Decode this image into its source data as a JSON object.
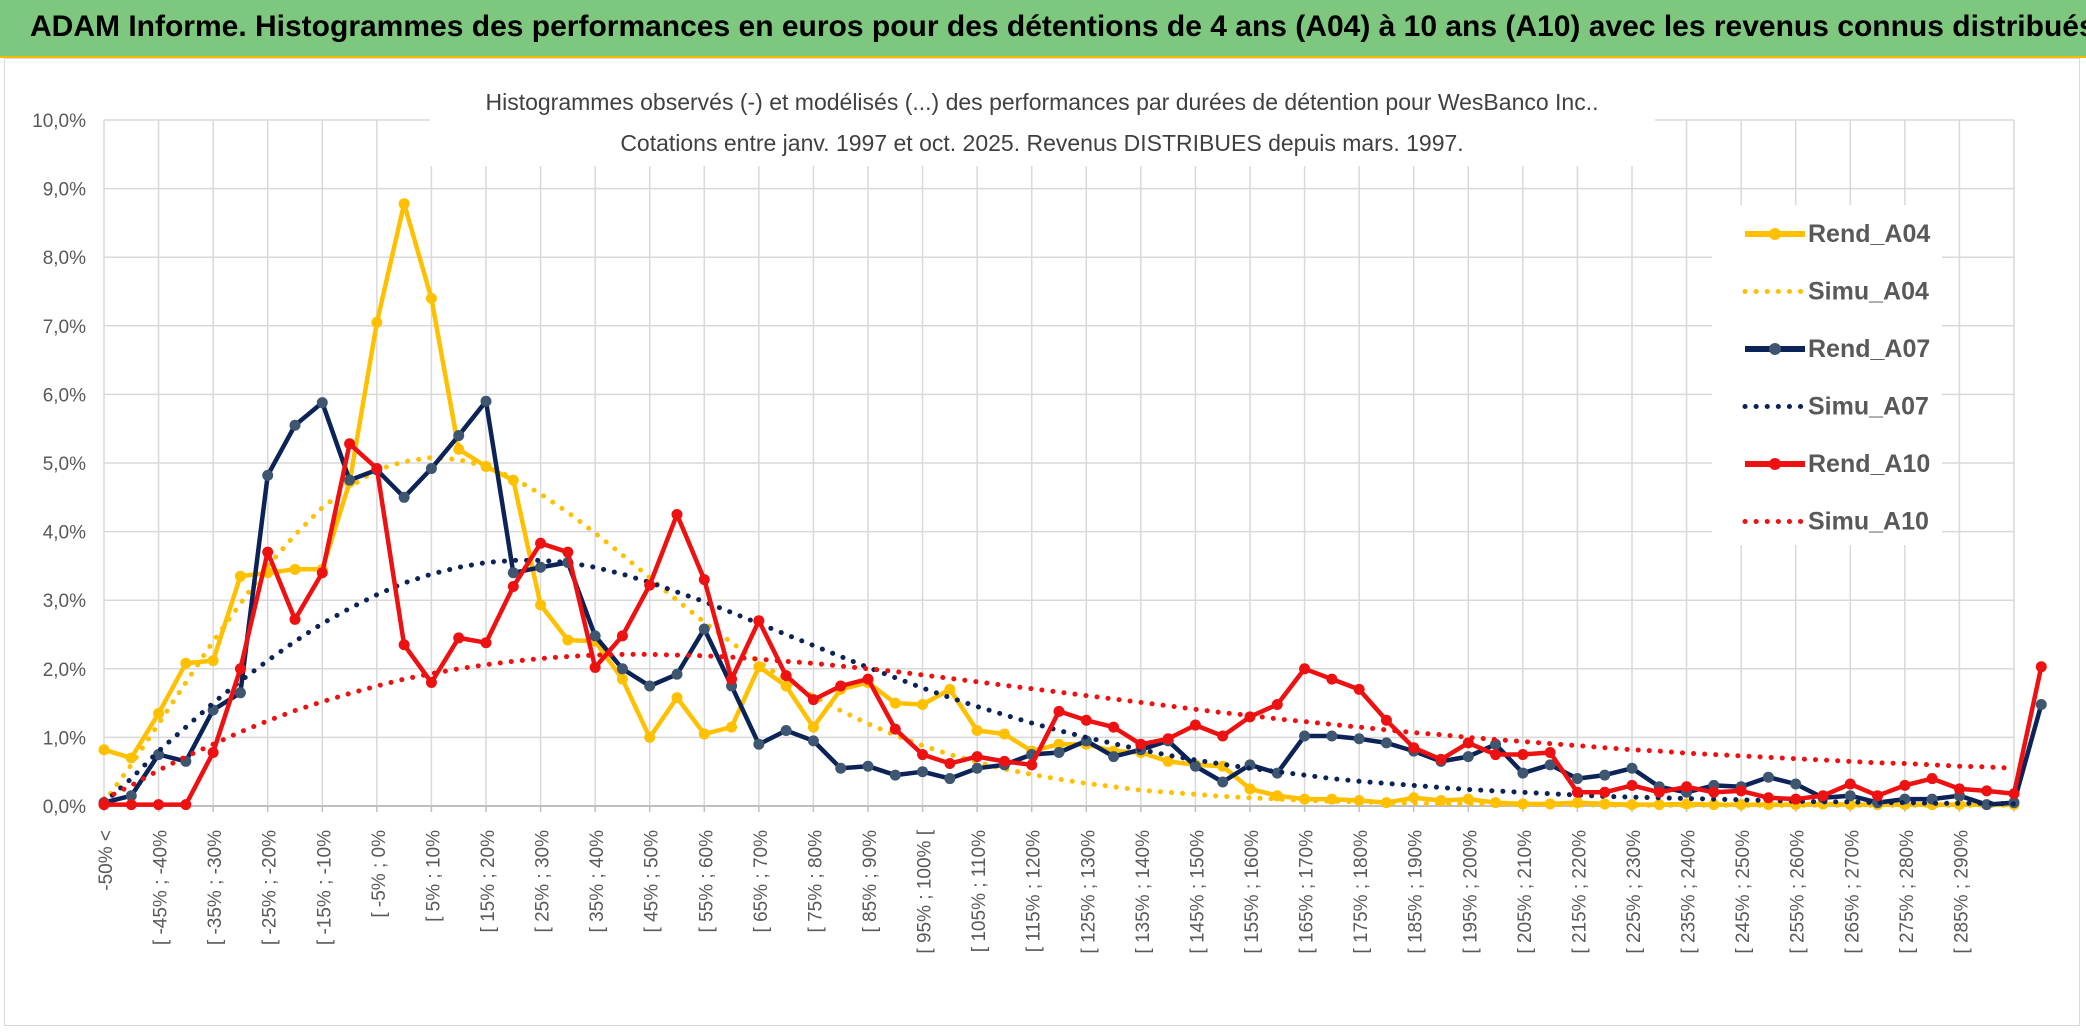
{
  "header": {
    "title": "ADAM Informe. Histogrammes des performances en euros pour des détentions de 4 ans (A04) à 10 ans (A10) avec les revenus connus distribués"
  },
  "chart_data": {
    "type": "line",
    "title": "Histogrammes observés (-) et modélisés (...) des performances par durées de détention pour WesBanco Inc..",
    "subtitle": "Cotations entre janv. 1997 et oct. 2025. Revenus DISTRIBUES depuis mars. 1997.",
    "y_tick_labels": [
      "0,0%",
      "1,0%",
      "2,0%",
      "3,0%",
      "4,0%",
      "5,0%",
      "6,0%",
      "7,0%",
      "8,0%",
      "9,0%",
      "10,0%"
    ],
    "ylim": [
      0,
      10
    ],
    "y_unit": "%",
    "grid": true,
    "legend_position": "right",
    "x_tick_labels": [
      "-50% <",
      "[ -45% ; -40%",
      "[ -35% ; -30%",
      "[ -25% ; -20%",
      "[ -15% ; -10%",
      "[ -5% ; 0%",
      "[ 5% ; 10%",
      "[ 15% ; 20%",
      "[ 25% ; 30%",
      "[ 35% ; 40%",
      "[ 45% ; 50%",
      "[ 55% ; 60%",
      "[ 65% ; 70%",
      "[ 75% ; 80%",
      "[ 85% ; 90%",
      "[ 95% ; 100% [",
      "[ 105% ; 110%",
      "[ 115% ; 120%",
      "[ 125% ; 130%",
      "[ 135% ; 140%",
      "[ 145% ; 150%",
      "[ 155% ; 160%",
      "[ 165% ; 170%",
      "[ 175% ; 180%",
      "[ 185% ; 190%",
      "[ 195% ; 200%",
      "[ 205% ; 210%",
      "[ 215% ; 220%",
      "[ 225% ; 230%",
      "[ 235% ; 240%",
      "[ 245% ; 250%",
      "[ 255% ; 260%",
      "[ 265% ; 270%",
      "[ 275% ; 280%",
      "[ 285% ; 290%"
    ],
    "series": [
      {
        "name": "Rend_A04",
        "style": "solid",
        "color": "#FFC000",
        "values": [
          0.82,
          0.7,
          1.35,
          2.08,
          2.12,
          3.35,
          3.4,
          3.45,
          3.45,
          4.72,
          7.05,
          8.78,
          7.4,
          5.2,
          4.95,
          4.75,
          2.93,
          2.42,
          2.4,
          1.85,
          1.0,
          1.58,
          1.05,
          1.15,
          2.03,
          1.75,
          1.15,
          1.7,
          1.8,
          1.5,
          1.48,
          1.7,
          1.1,
          1.05,
          0.8,
          0.9,
          0.9,
          0.8,
          0.78,
          0.65,
          0.6,
          0.58,
          0.25,
          0.15,
          0.1,
          0.1,
          0.08,
          0.05,
          0.12,
          0.08,
          0.1,
          0.05,
          0.03,
          0.03,
          0.05,
          0.03,
          0.02,
          0.02,
          0.03,
          0.02,
          0.02,
          0.02,
          0.02,
          0.03,
          0.02,
          0.02,
          0.02,
          0.02,
          0.02,
          0.02,
          0.02
        ]
      },
      {
        "name": "Simu_A04",
        "style": "dotted",
        "color": "#FFC000",
        "values": [
          0.05,
          0.6,
          1.2,
          1.8,
          2.4,
          2.95,
          3.5,
          3.95,
          4.35,
          4.65,
          4.9,
          5.02,
          5.08,
          5.05,
          4.95,
          4.78,
          4.55,
          4.28,
          3.98,
          3.66,
          3.33,
          3.0,
          2.68,
          2.38,
          2.1,
          1.84,
          1.6,
          1.39,
          1.2,
          1.03,
          0.88,
          0.75,
          0.64,
          0.54,
          0.46,
          0.39,
          0.33,
          0.28,
          0.23,
          0.2,
          0.17,
          0.14,
          0.12,
          0.1,
          0.08,
          0.07,
          0.06,
          0.05,
          0.04,
          0.035,
          0.03,
          0.025,
          0.02,
          0.02,
          0.015,
          0.015,
          0.01,
          0.01,
          0.01,
          0.01,
          0.01,
          0.01,
          0.01,
          0.01,
          0.01,
          0.01,
          0.01,
          0.01,
          0.01,
          0.01,
          0.01
        ]
      },
      {
        "name": "Rend_A07",
        "style": "solid",
        "color": "#0C2357",
        "values": [
          0.05,
          0.15,
          0.75,
          0.65,
          1.4,
          1.65,
          4.82,
          5.55,
          5.88,
          4.75,
          4.9,
          4.5,
          4.92,
          5.4,
          5.9,
          3.4,
          3.48,
          3.55,
          2.48,
          2.0,
          1.75,
          1.92,
          2.58,
          1.75,
          0.9,
          1.1,
          0.95,
          0.55,
          0.58,
          0.45,
          0.5,
          0.4,
          0.55,
          0.6,
          0.75,
          0.78,
          0.95,
          0.72,
          0.82,
          0.95,
          0.58,
          0.35,
          0.6,
          0.48,
          1.02,
          1.02,
          0.98,
          0.92,
          0.8,
          0.65,
          0.72,
          0.9,
          0.48,
          0.6,
          0.4,
          0.45,
          0.55,
          0.28,
          0.2,
          0.3,
          0.28,
          0.42,
          0.32,
          0.12,
          0.15,
          0.05,
          0.1,
          0.1,
          0.15,
          0.02,
          0.05,
          1.48
        ]
      },
      {
        "name": "Simu_A07",
        "style": "dotted",
        "color": "#0C2357",
        "values": [
          0.05,
          0.4,
          0.8,
          1.15,
          1.5,
          1.82,
          2.12,
          2.4,
          2.66,
          2.88,
          3.08,
          3.25,
          3.38,
          3.48,
          3.55,
          3.58,
          3.58,
          3.55,
          3.48,
          3.38,
          3.26,
          3.12,
          2.98,
          2.82,
          2.66,
          2.5,
          2.34,
          2.18,
          2.02,
          1.87,
          1.72,
          1.58,
          1.45,
          1.33,
          1.21,
          1.1,
          1.0,
          0.91,
          0.82,
          0.74,
          0.67,
          0.61,
          0.55,
          0.5,
          0.45,
          0.4,
          0.36,
          0.33,
          0.3,
          0.27,
          0.24,
          0.22,
          0.2,
          0.18,
          0.16,
          0.14,
          0.13,
          0.12,
          0.11,
          0.1,
          0.09,
          0.08,
          0.07,
          0.06,
          0.06,
          0.05,
          0.05,
          0.04,
          0.04,
          0.04,
          0.03
        ]
      },
      {
        "name": "Rend_A10",
        "style": "solid",
        "color": "#EE1111",
        "values": [
          0.02,
          0.02,
          0.02,
          0.02,
          0.78,
          2.0,
          3.7,
          2.72,
          3.4,
          5.28,
          4.92,
          2.35,
          1.8,
          2.45,
          2.38,
          3.2,
          3.83,
          3.7,
          2.02,
          2.48,
          3.22,
          4.25,
          3.3,
          1.85,
          2.7,
          1.9,
          1.55,
          1.75,
          1.85,
          1.12,
          0.75,
          0.62,
          0.72,
          0.65,
          0.6,
          1.38,
          1.25,
          1.15,
          0.9,
          0.98,
          1.18,
          1.02,
          1.3,
          1.48,
          2.0,
          1.85,
          1.7,
          1.25,
          0.85,
          0.68,
          0.92,
          0.75,
          0.75,
          0.78,
          0.2,
          0.2,
          0.3,
          0.2,
          0.28,
          0.2,
          0.22,
          0.12,
          0.1,
          0.15,
          0.32,
          0.15,
          0.3,
          0.4,
          0.25,
          0.22,
          0.18,
          2.03
        ]
      },
      {
        "name": "Simu_A10",
        "style": "dotted",
        "color": "#EE1111",
        "values": [
          0.1,
          0.3,
          0.52,
          0.72,
          0.9,
          1.08,
          1.24,
          1.39,
          1.52,
          1.64,
          1.75,
          1.85,
          1.93,
          2.0,
          2.06,
          2.11,
          2.15,
          2.18,
          2.2,
          2.21,
          2.21,
          2.2,
          2.19,
          2.17,
          2.14,
          2.11,
          2.08,
          2.04,
          2.0,
          1.96,
          1.91,
          1.86,
          1.81,
          1.76,
          1.71,
          1.66,
          1.61,
          1.56,
          1.51,
          1.46,
          1.41,
          1.36,
          1.32,
          1.27,
          1.23,
          1.19,
          1.15,
          1.11,
          1.07,
          1.04,
          1.0,
          0.97,
          0.94,
          0.91,
          0.88,
          0.85,
          0.82,
          0.8,
          0.77,
          0.75,
          0.73,
          0.71,
          0.69,
          0.67,
          0.65,
          0.63,
          0.62,
          0.6,
          0.58,
          0.57,
          0.55
        ]
      }
    ]
  }
}
